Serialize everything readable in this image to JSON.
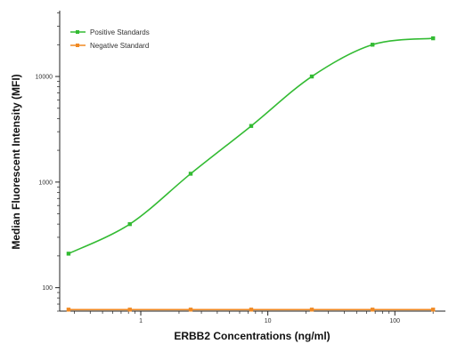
{
  "chart_data": {
    "type": "line",
    "title": "",
    "xlabel": "ERBB2 Concentrations (ng/ml)",
    "ylabel": "Median Fluorescent Intensity (MFI)",
    "x_scale": "log",
    "y_scale": "log",
    "xlim": [
      0.23,
      250
    ],
    "ylim": [
      60,
      42000
    ],
    "x_ticks": [
      1,
      10,
      100
    ],
    "x_tick_labels": [
      "1",
      "10",
      "100"
    ],
    "y_ticks": [
      100,
      1000,
      10000
    ],
    "y_tick_labels": [
      "100",
      "1000",
      "10000"
    ],
    "grid": false,
    "legend_position": "top-left",
    "series": [
      {
        "name": "Positive Standards",
        "color": "#33bb33",
        "marker": "square",
        "fit": "sigmoid",
        "x": [
          0.27,
          0.82,
          2.47,
          7.4,
          22.2,
          66.7,
          200
        ],
        "y": [
          210,
          400,
          1200,
          3400,
          10000,
          20000,
          23000
        ]
      },
      {
        "name": "Negative Standard",
        "color": "#f08a24",
        "marker": "square",
        "fit": "line",
        "x": [
          0.27,
          0.82,
          2.47,
          7.4,
          22.2,
          66.7,
          200
        ],
        "y": [
          62,
          62,
          62,
          62,
          62,
          62,
          62
        ]
      }
    ]
  }
}
